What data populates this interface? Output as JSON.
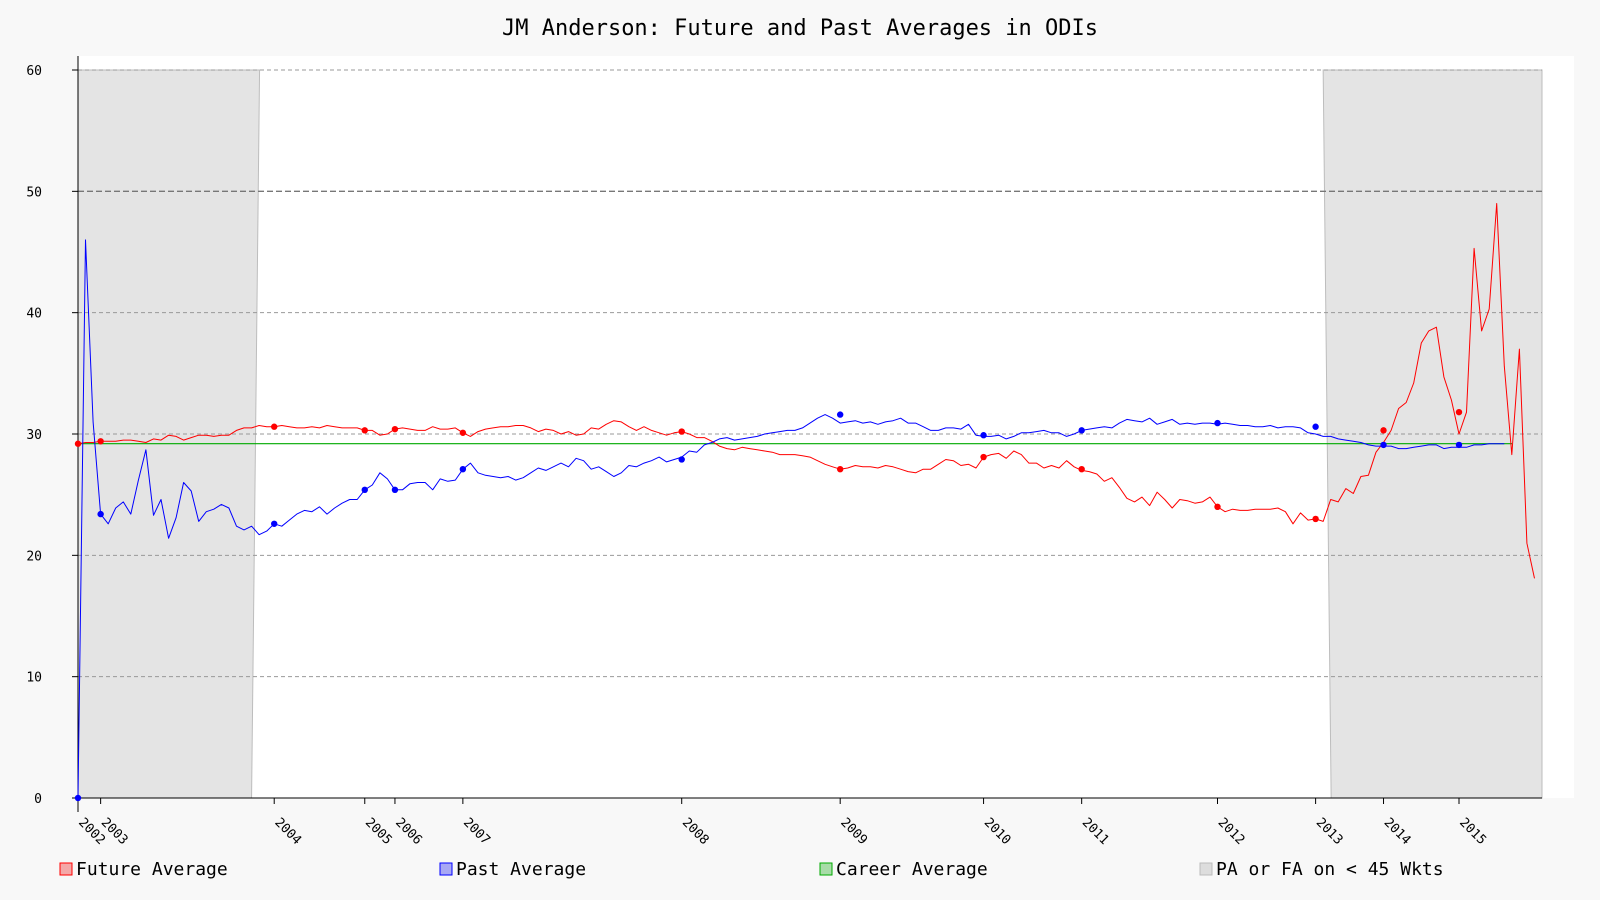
{
  "chart_data": {
    "type": "line",
    "title": "JM Anderson: Future and Past Averages in ODIs",
    "xlabel": "",
    "ylabel": "",
    "ylim": [
      0,
      60
    ],
    "y_ticks": [
      0,
      10,
      20,
      30,
      40,
      50,
      60
    ],
    "x_range_matches": [
      1,
      195
    ],
    "grid": "horizontal dashed",
    "legend_placement": "bottom",
    "x_tick_labels": [
      {
        "label": "2002",
        "match": 1
      },
      {
        "label": "2003",
        "match": 4
      },
      {
        "label": "2004",
        "match": 27
      },
      {
        "label": "2005",
        "match": 39
      },
      {
        "label": "2006",
        "match": 43
      },
      {
        "label": "2007",
        "match": 52
      },
      {
        "label": "2008",
        "match": 81
      },
      {
        "label": "2009",
        "match": 102
      },
      {
        "label": "2010",
        "match": 121
      },
      {
        "label": "2011",
        "match": 134
      },
      {
        "label": "2012",
        "match": 152
      },
      {
        "label": "2013",
        "match": 165
      },
      {
        "label": "2014",
        "match": 174
      },
      {
        "label": "2015",
        "match": 184
      }
    ],
    "shaded_regions": [
      {
        "from": 1,
        "to": 24
      },
      {
        "from": 166,
        "to": 195
      }
    ],
    "career_average": 29.2,
    "series": [
      {
        "name": "Future Average",
        "color": "#ff0000",
        "values": [
          29.2,
          29.3,
          29.3,
          29.4,
          29.4,
          29.4,
          29.5,
          29.5,
          29.4,
          29.3,
          29.6,
          29.5,
          29.9,
          29.8,
          29.5,
          29.7,
          29.9,
          29.9,
          29.8,
          29.9,
          29.9,
          30.3,
          30.5,
          30.5,
          30.7,
          30.6,
          30.6,
          30.7,
          30.6,
          30.5,
          30.5,
          30.6,
          30.5,
          30.7,
          30.6,
          30.5,
          30.5,
          30.5,
          30.3,
          30.3,
          29.9,
          30.0,
          30.4,
          30.5,
          30.4,
          30.3,
          30.3,
          30.6,
          30.4,
          30.4,
          30.5,
          30.1,
          29.8,
          30.2,
          30.4,
          30.5,
          30.6,
          30.6,
          30.7,
          30.7,
          30.5,
          30.2,
          30.4,
          30.3,
          30.0,
          30.2,
          29.9,
          30.0,
          30.5,
          30.4,
          30.8,
          31.1,
          31.0,
          30.6,
          30.3,
          30.6,
          30.3,
          30.1,
          29.9,
          30.1,
          30.2,
          30.0,
          29.7,
          29.7,
          29.4,
          29.0,
          28.8,
          28.7,
          28.9,
          28.8,
          28.7,
          28.6,
          28.5,
          28.3,
          28.3,
          28.3,
          28.2,
          28.1,
          27.8,
          27.5,
          27.3,
          27.1,
          27.2,
          27.4,
          27.3,
          27.3,
          27.2,
          27.4,
          27.3,
          27.1,
          26.9,
          26.8,
          27.1,
          27.1,
          27.5,
          27.9,
          27.8,
          27.4,
          27.5,
          27.2,
          28.1,
          28.3,
          28.4,
          28.0,
          28.6,
          28.3,
          27.6,
          27.6,
          27.2,
          27.4,
          27.2,
          27.8,
          27.3,
          27.0,
          26.9,
          26.7,
          26.1,
          26.4,
          25.6,
          24.7,
          24.4,
          24.8,
          24.1,
          25.2,
          24.6,
          23.9,
          24.6,
          24.5,
          24.3,
          24.4,
          24.8,
          24.0,
          23.6,
          23.8,
          23.7,
          23.7,
          23.8,
          23.8,
          23.8,
          23.9,
          23.6,
          22.6,
          23.5,
          22.9,
          23.0,
          22.8,
          24.6,
          24.4,
          25.5,
          25.1,
          26.5,
          26.6,
          28.5,
          29.3,
          30.3,
          32.1,
          32.6,
          34.2,
          37.5,
          38.5,
          38.8,
          34.7,
          32.8,
          30.0,
          31.8,
          45.3,
          38.5,
          40.3,
          49.0,
          35.6,
          28.3,
          37.0,
          21.0,
          18.1
        ]
      },
      {
        "name": "Past Average",
        "color": "#0000ff",
        "values": [
          0.0,
          46.0,
          31.0,
          23.4,
          22.6,
          23.9,
          24.4,
          23.4,
          26.2,
          28.7,
          23.3,
          24.6,
          21.4,
          23.1,
          26.0,
          25.3,
          22.8,
          23.6,
          23.8,
          24.2,
          23.9,
          22.4,
          22.1,
          22.4,
          21.7,
          22.0,
          22.6,
          22.4,
          22.9,
          23.4,
          23.7,
          23.6,
          24.0,
          23.4,
          23.9,
          24.3,
          24.6,
          24.6,
          25.4,
          25.8,
          26.8,
          26.3,
          25.4,
          25.4,
          25.9,
          26.0,
          26.0,
          25.4,
          26.3,
          26.1,
          26.2,
          27.1,
          27.6,
          26.8,
          26.6,
          26.5,
          26.4,
          26.5,
          26.2,
          26.4,
          26.8,
          27.2,
          27.0,
          27.3,
          27.6,
          27.3,
          28.0,
          27.8,
          27.1,
          27.3,
          26.9,
          26.5,
          26.8,
          27.4,
          27.3,
          27.6,
          27.8,
          28.1,
          27.7,
          27.9,
          28.1,
          28.6,
          28.5,
          29.1,
          29.3,
          29.6,
          29.7,
          29.5,
          29.6,
          29.7,
          29.8,
          30.0,
          30.1,
          30.2,
          30.3,
          30.3,
          30.5,
          30.9,
          31.3,
          31.6,
          31.3,
          30.9,
          31.0,
          31.1,
          30.9,
          31.0,
          30.8,
          31.0,
          31.1,
          31.3,
          30.9,
          30.9,
          30.6,
          30.3,
          30.3,
          30.5,
          30.5,
          30.4,
          30.8,
          29.9,
          29.8,
          29.8,
          29.9,
          29.6,
          29.8,
          30.1,
          30.1,
          30.2,
          30.3,
          30.1,
          30.1,
          29.8,
          30.0,
          30.3,
          30.4,
          30.5,
          30.6,
          30.5,
          30.9,
          31.2,
          31.1,
          31.0,
          31.3,
          30.8,
          31.0,
          31.2,
          30.8,
          30.9,
          30.8,
          30.9,
          30.9,
          30.8,
          30.9,
          30.8,
          30.7,
          30.7,
          30.6,
          30.6,
          30.7,
          30.5,
          30.6,
          30.6,
          30.5,
          30.1,
          30.0,
          29.8,
          29.8,
          29.6,
          29.5,
          29.4,
          29.3,
          29.1,
          29.0,
          29.0,
          29.0,
          28.8,
          28.8,
          28.9,
          29.0,
          29.1,
          29.1,
          28.8,
          28.9,
          28.9,
          28.9,
          29.1,
          29.1,
          29.2,
          29.2,
          29.2
        ]
      },
      {
        "name": "Career Average",
        "color": "#00aa00",
        "values": []
      }
    ],
    "markers": [
      {
        "match": 1,
        "future": 29.2,
        "past": 0.0
      },
      {
        "match": 4,
        "future": 29.4,
        "past": 23.4
      },
      {
        "match": 27,
        "future": 30.6,
        "past": 22.6
      },
      {
        "match": 39,
        "future": 30.3,
        "past": 25.4
      },
      {
        "match": 43,
        "future": 30.4,
        "past": 25.4
      },
      {
        "match": 52,
        "future": 30.1,
        "past": 27.1
      },
      {
        "match": 81,
        "future": 30.2,
        "past": 27.9
      },
      {
        "match": 102,
        "future": 27.1,
        "past": 31.6
      },
      {
        "match": 121,
        "future": 28.1,
        "past": 29.9
      },
      {
        "match": 134,
        "future": 27.1,
        "past": 30.3
      },
      {
        "match": 152,
        "future": 24.0,
        "past": 30.9
      },
      {
        "match": 165,
        "future": 23.0,
        "past": 30.6
      },
      {
        "match": 174,
        "future": 30.3,
        "past": 29.1
      },
      {
        "match": 184,
        "future": 31.8,
        "past": 29.1
      }
    ],
    "legend": [
      {
        "label": "Future Average",
        "color": "#ff0000",
        "swatch": "#f4a8a8"
      },
      {
        "label": "Past Average",
        "color": "#0000ff",
        "swatch": "#a8a8f4"
      },
      {
        "label": "Career Average",
        "color": "#00aa00",
        "swatch": "#a8dca8"
      },
      {
        "label": "PA or FA on < 45 Wkts",
        "color": "#bbbbbb",
        "swatch": "#dddddd"
      }
    ]
  }
}
